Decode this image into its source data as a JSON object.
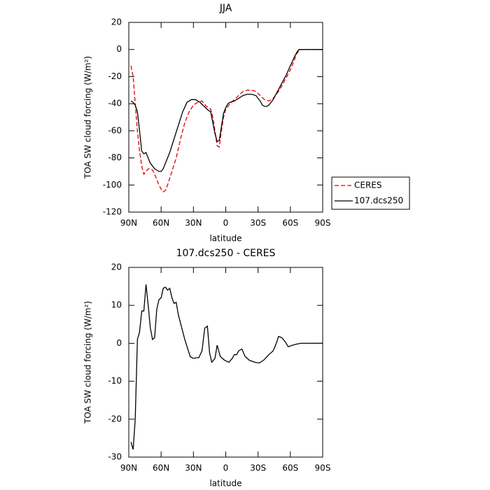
{
  "chart_data": [
    {
      "type": "line",
      "title": "JJA",
      "xlabel": "latitude",
      "ylabel": "TOA SW cloud forcing (W/m²)",
      "xlim": [
        90,
        -90
      ],
      "xticks": [
        {
          "value": 90,
          "label": "90N"
        },
        {
          "value": 60,
          "label": "60N"
        },
        {
          "value": 30,
          "label": "30N"
        },
        0,
        {
          "value": -30,
          "label": "30S"
        },
        {
          "value": -60,
          "label": "60S"
        },
        {
          "value": -90,
          "label": "90S"
        }
      ],
      "ylim": [
        -120,
        20
      ],
      "yticks": [
        -120,
        -100,
        -80,
        -60,
        -40,
        -20,
        0,
        20
      ],
      "legend": "outside-right",
      "series": [
        {
          "name": "CERES",
          "color": "#e00000",
          "linestyle": "dashed",
          "x": [
            88,
            86,
            84,
            82,
            80,
            78,
            76,
            74,
            72,
            70,
            68,
            66,
            64,
            62,
            60,
            58,
            56,
            54,
            50,
            46,
            42,
            38,
            34,
            30,
            26,
            22,
            18,
            14,
            12,
            10,
            8,
            6,
            4,
            2,
            0,
            -4,
            -8,
            -12,
            -16,
            -20,
            -24,
            -28,
            -32,
            -36,
            -40,
            -44,
            -48,
            -52,
            -56,
            -60,
            -64,
            -66,
            -68,
            -70,
            -74,
            -80,
            -90
          ],
          "values": [
            -12,
            -20,
            -40,
            -60,
            -75,
            -86,
            -92,
            -90,
            -88,
            -88,
            -89,
            -92,
            -96,
            -100,
            -103,
            -105,
            -104,
            -100,
            -90,
            -80,
            -66,
            -54,
            -46,
            -41,
            -39,
            -38,
            -42,
            -44,
            -50,
            -60,
            -71,
            -72,
            -60,
            -50,
            -44,
            -40,
            -37,
            -34,
            -31,
            -30,
            -30,
            -31,
            -34,
            -37,
            -38,
            -36,
            -32,
            -27,
            -21,
            -15,
            -7,
            -3,
            -1,
            0,
            0,
            0,
            0
          ]
        },
        {
          "name": "107.dcs250",
          "color": "#000000",
          "linestyle": "solid",
          "x": [
            88,
            86,
            84,
            82,
            80,
            78,
            76,
            74,
            72,
            70,
            68,
            66,
            64,
            62,
            60,
            58,
            56,
            52,
            48,
            44,
            40,
            36,
            32,
            28,
            24,
            20,
            16,
            14,
            12,
            10,
            8,
            6,
            4,
            2,
            0,
            -2,
            -4,
            -8,
            -12,
            -16,
            -20,
            -24,
            -28,
            -32,
            -34,
            -36,
            -38,
            -40,
            -44,
            -48,
            -52,
            -56,
            -60,
            -64,
            -66,
            -68,
            -70,
            -74,
            -80,
            -90
          ],
          "values": [
            -38,
            -39,
            -41,
            -46,
            -60,
            -75,
            -77,
            -76,
            -80,
            -84,
            -86,
            -88,
            -89,
            -90,
            -90,
            -88,
            -84,
            -76,
            -66,
            -56,
            -46,
            -39,
            -37,
            -37,
            -39,
            -42,
            -45,
            -46,
            -54,
            -62,
            -68,
            -67,
            -57,
            -47,
            -43,
            -40,
            -39,
            -38,
            -36,
            -34,
            -33,
            -33,
            -34,
            -38,
            -41,
            -42,
            -42,
            -41,
            -37,
            -31,
            -25,
            -19,
            -12,
            -5,
            -2,
            0,
            0,
            0,
            0,
            0
          ]
        }
      ]
    },
    {
      "type": "line",
      "title": "107.dcs250 - CERES",
      "xlabel": "latitude",
      "ylabel": "TOA SW cloud forcing (W/m²)",
      "xlim": [
        90,
        -90
      ],
      "xticks": [
        {
          "value": 90,
          "label": "90N"
        },
        {
          "value": 60,
          "label": "60N"
        },
        {
          "value": 30,
          "label": "30N"
        },
        0,
        {
          "value": -30,
          "label": "30S"
        },
        {
          "value": -60,
          "label": "60S"
        },
        {
          "value": -90,
          "label": "90S"
        }
      ],
      "ylim": [
        -30,
        20
      ],
      "yticks": [
        -30,
        -20,
        -10,
        0,
        10,
        20
      ],
      "series": [
        {
          "color": "#000000",
          "linestyle": "solid",
          "x": [
            88,
            86,
            84,
            82,
            80,
            78,
            76,
            74,
            72,
            70,
            68,
            66,
            64,
            62,
            60,
            58,
            56,
            54,
            52,
            50,
            48,
            46,
            44,
            38,
            33,
            30,
            27,
            25,
            22,
            19.5,
            17,
            15,
            13,
            10,
            8,
            5,
            1,
            -3,
            -6,
            -8,
            -10,
            -12,
            -15,
            -18,
            -22,
            -27,
            -31,
            -35,
            -40,
            -44,
            -47,
            -49,
            -52,
            -55,
            -58,
            -62,
            -66,
            -70,
            -90
          ],
          "values": [
            -26,
            -28,
            -20,
            1,
            3,
            8.5,
            8.5,
            15.5,
            10,
            4,
            1,
            1.5,
            9,
            11.5,
            12,
            14.5,
            14.8,
            14,
            14.5,
            12,
            10.5,
            10.8,
            7.5,
            1,
            -3.5,
            -4,
            -3.8,
            -3.8,
            -2,
            4,
            4.5,
            -2.5,
            -5,
            -4,
            -0.5,
            -3.5,
            -4.5,
            -5,
            -4,
            -3,
            -3,
            -2,
            -1.5,
            -3.5,
            -4.5,
            -5,
            -5.2,
            -4.5,
            -3,
            -2,
            0,
            1.8,
            1.5,
            0.5,
            -0.9,
            -0.5,
            -0.2,
            0,
            0
          ]
        }
      ]
    }
  ]
}
